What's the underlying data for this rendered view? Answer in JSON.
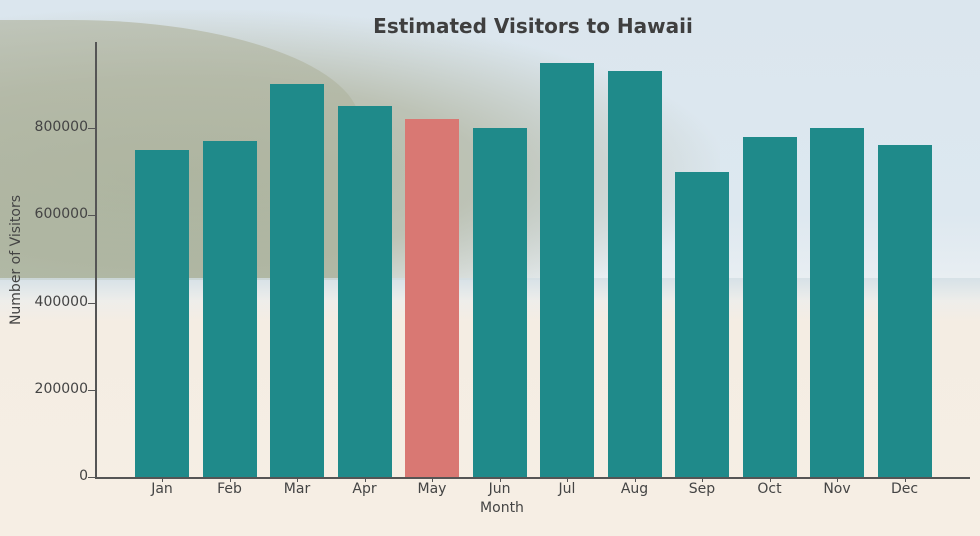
{
  "chart_data": {
    "type": "bar",
    "title": "Estimated Visitors to Hawaii",
    "xlabel": "Month",
    "ylabel": "Number of Visitors",
    "categories": [
      "Jan",
      "Feb",
      "Mar",
      "Apr",
      "May",
      "Jun",
      "Jul",
      "Aug",
      "Sep",
      "Oct",
      "Nov",
      "Dec"
    ],
    "values": [
      750000,
      770000,
      900000,
      850000,
      820000,
      800000,
      950000,
      930000,
      700000,
      780000,
      800000,
      760000
    ],
    "highlight": {
      "category": "May",
      "color": "#d97873"
    },
    "bar_color": "#1f8a8a",
    "yticks": [
      0,
      200000,
      400000,
      600000,
      800000
    ],
    "ylim": [
      0,
      1000000
    ],
    "grid": false,
    "legend": null,
    "background": "Hawaii beach and mountain photo (faded)"
  }
}
